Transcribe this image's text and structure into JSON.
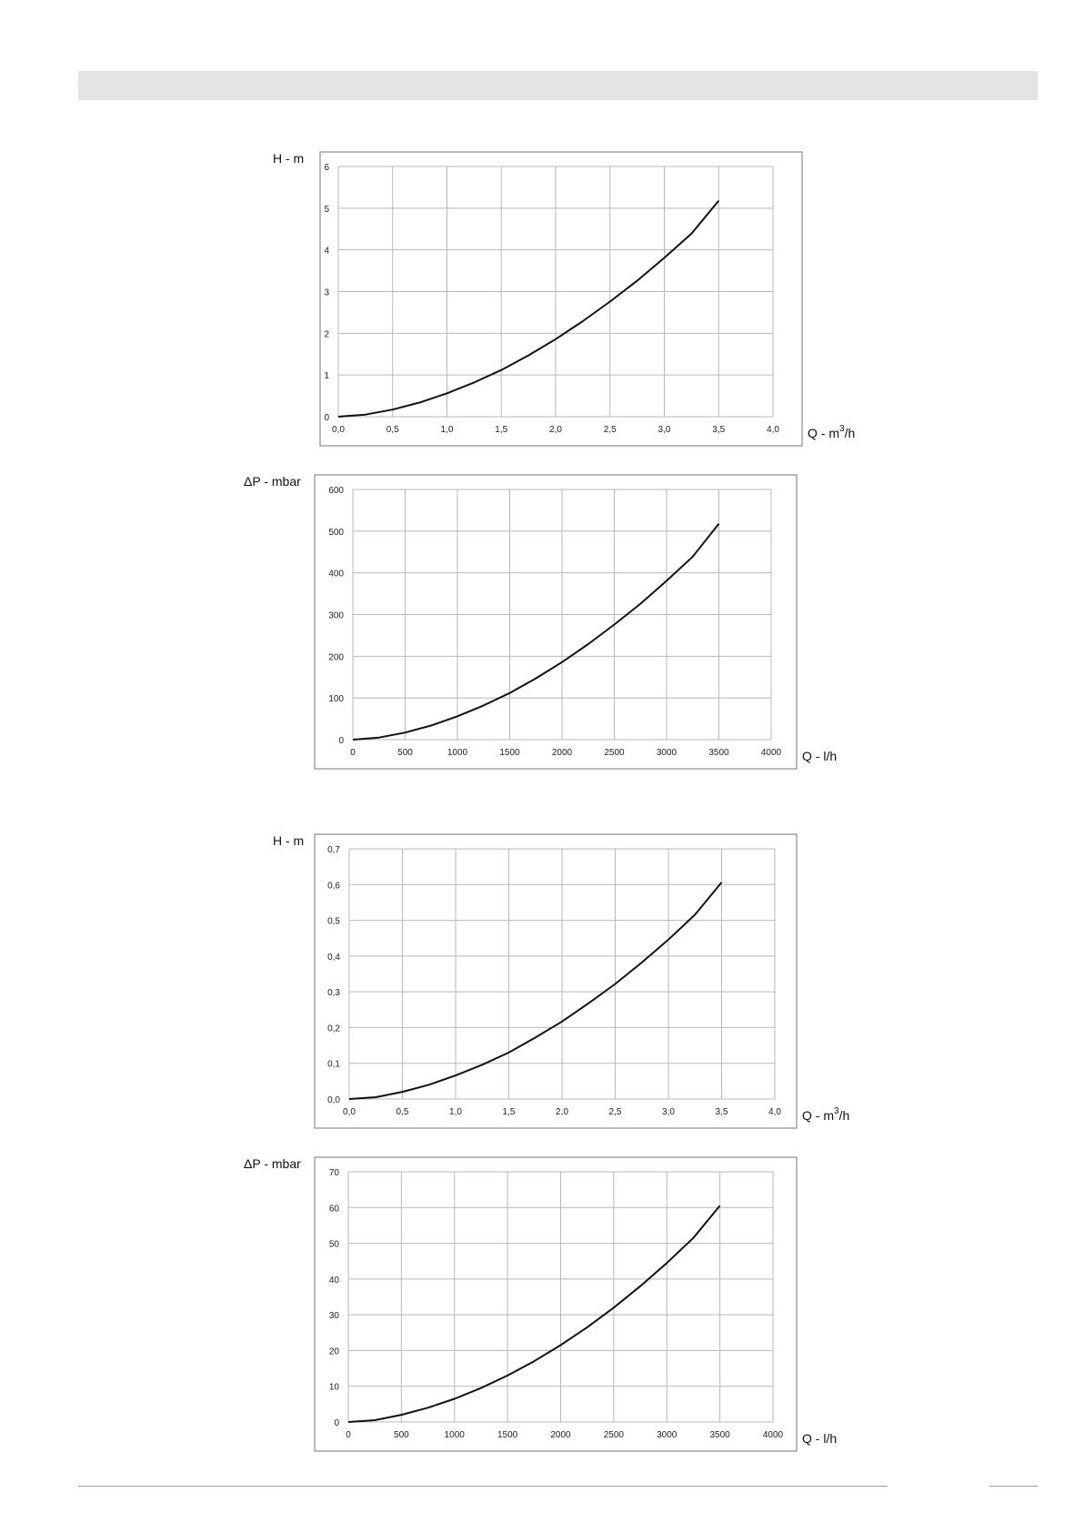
{
  "chart_data": [
    {
      "type": "line",
      "title": "",
      "ylabel": "H - m",
      "xlabel": {
        "base": "Q - m",
        "sup": "3",
        "tail": "/h"
      },
      "xlim": [
        0,
        4.0
      ],
      "ylim": [
        0,
        6
      ],
      "grid": true,
      "x_ticks": [
        0,
        0.5,
        1.0,
        1.5,
        2.0,
        2.5,
        3.0,
        3.5,
        4.0
      ],
      "x_tick_labels": [
        "0,0",
        "0,5",
        "1,0",
        "1,5",
        "2,0",
        "2,5",
        "3,0",
        "3,5",
        "4,0"
      ],
      "y_ticks": [
        0,
        1,
        2,
        3,
        4,
        5,
        6
      ],
      "y_tick_labels": [
        "0",
        "1",
        "2",
        "3",
        "4",
        "5",
        "6"
      ],
      "series": [
        {
          "x": [
            0,
            0.25,
            0.5,
            0.75,
            1.0,
            1.25,
            1.5,
            1.75,
            2.0,
            2.25,
            2.5,
            2.75,
            3.0,
            3.25,
            3.5
          ],
          "y": [
            0,
            0.05,
            0.17,
            0.34,
            0.56,
            0.82,
            1.12,
            1.47,
            1.86,
            2.29,
            2.76,
            3.26,
            3.81,
            4.39,
            5.18
          ]
        }
      ]
    },
    {
      "type": "line",
      "title": "",
      "ylabel": "ΔP - mbar",
      "xlabel": {
        "base": "Q - l/h",
        "sup": "",
        "tail": ""
      },
      "xlim": [
        0,
        4000
      ],
      "ylim": [
        0,
        600
      ],
      "grid": true,
      "x_ticks": [
        0,
        500,
        1000,
        1500,
        2000,
        2500,
        3000,
        3500,
        4000
      ],
      "x_tick_labels": [
        "0",
        "500",
        "1000",
        "1500",
        "2000",
        "2500",
        "3000",
        "3500",
        "4000"
      ],
      "y_ticks": [
        0,
        100,
        200,
        300,
        400,
        500,
        600
      ],
      "y_tick_labels": [
        "0",
        "100",
        "200",
        "300",
        "400",
        "500",
        "600"
      ],
      "series": [
        {
          "x": [
            0,
            250,
            500,
            750,
            1000,
            1250,
            1500,
            1750,
            2000,
            2250,
            2500,
            2750,
            3000,
            3250,
            3500
          ],
          "y": [
            0,
            5,
            17,
            34,
            56,
            82,
            112,
            147,
            186,
            229,
            276,
            326,
            381,
            439,
            518
          ]
        }
      ]
    },
    {
      "type": "line",
      "title": "",
      "ylabel": "H - m",
      "xlabel": {
        "base": "Q - m",
        "sup": "3",
        "tail": "/h"
      },
      "xlim": [
        0,
        4.0
      ],
      "ylim": [
        0,
        0.7
      ],
      "grid": true,
      "x_ticks": [
        0,
        0.5,
        1.0,
        1.5,
        2.0,
        2.5,
        3.0,
        3.5,
        4.0
      ],
      "x_tick_labels": [
        "0,0",
        "0,5",
        "1,0",
        "1,5",
        "2,0",
        "2,5",
        "3,0",
        "3,5",
        "4,0"
      ],
      "y_ticks": [
        0,
        0.1,
        0.2,
        0.3,
        0.4,
        0.5,
        0.6,
        0.7
      ],
      "y_tick_labels": [
        "0,0",
        "0,1",
        "0,2",
        "0,3",
        "0,4",
        "0,5",
        "0,6",
        "0,7"
      ],
      "series": [
        {
          "x": [
            0,
            0.25,
            0.5,
            0.75,
            1.0,
            1.25,
            1.5,
            1.75,
            2.0,
            2.25,
            2.5,
            2.75,
            3.0,
            3.25,
            3.5
          ],
          "y": [
            0,
            0.005,
            0.02,
            0.04,
            0.066,
            0.096,
            0.13,
            0.172,
            0.217,
            0.268,
            0.322,
            0.382,
            0.446,
            0.516,
            0.606
          ]
        }
      ]
    },
    {
      "type": "line",
      "title": "",
      "ylabel": "ΔP - mbar",
      "xlabel": {
        "base": "Q - l/h",
        "sup": "",
        "tail": ""
      },
      "xlim": [
        0,
        4000
      ],
      "ylim": [
        0,
        70
      ],
      "grid": true,
      "x_ticks": [
        0,
        500,
        1000,
        1500,
        2000,
        2500,
        3000,
        3500,
        4000
      ],
      "x_tick_labels": [
        "0",
        "500",
        "1000",
        "1500",
        "2000",
        "2500",
        "3000",
        "3500",
        "4000"
      ],
      "y_ticks": [
        0,
        10,
        20,
        30,
        40,
        50,
        60,
        70
      ],
      "y_tick_labels": [
        "0",
        "10",
        "20",
        "30",
        "40",
        "50",
        "60",
        "70"
      ],
      "series": [
        {
          "x": [
            0,
            250,
            500,
            750,
            1000,
            1250,
            1500,
            1750,
            2000,
            2250,
            2500,
            2750,
            3000,
            3250,
            3500
          ],
          "y": [
            0,
            0.5,
            2,
            4,
            6.5,
            9.5,
            13,
            17,
            21.5,
            26.5,
            32,
            38,
            44.5,
            51.5,
            60.5
          ]
        }
      ]
    }
  ]
}
